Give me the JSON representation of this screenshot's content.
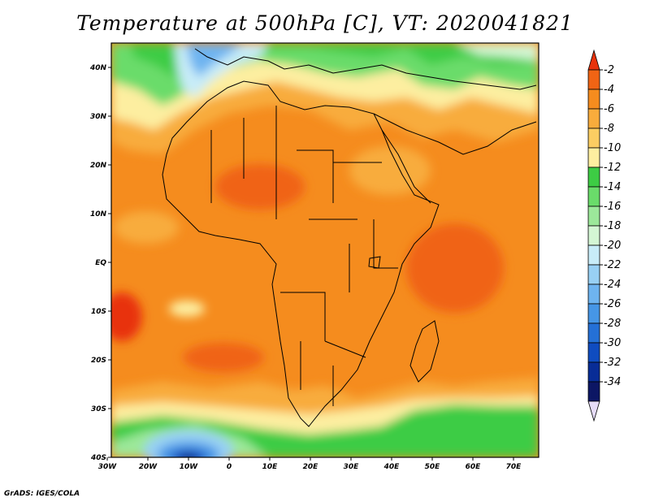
{
  "title": "Temperature at 500hPa [C], VT: 2020041821",
  "credit": "GrADS: IGES/COLA",
  "axes": {
    "lat_labels": [
      "40N",
      "30N",
      "20N",
      "10N",
      "EQ",
      "10S",
      "20S",
      "30S",
      "40S"
    ],
    "lon_labels": [
      "30W",
      "20W",
      "10W",
      "0",
      "10E",
      "20E",
      "30E",
      "40E",
      "50E",
      "60E",
      "70E"
    ]
  },
  "colorbar": {
    "labels": [
      "-2",
      "-4",
      "-6",
      "-8",
      "-10",
      "-12",
      "-14",
      "-16",
      "-18",
      "-20",
      "-22",
      "-24",
      "-26",
      "-28",
      "-30",
      "-32",
      "-34"
    ],
    "colors": [
      "#e8320c",
      "#f06414",
      "#f58c1e",
      "#f8ac3c",
      "#fbcd62",
      "#fdeea0",
      "#3dcc44",
      "#6adc6a",
      "#9ce89a",
      "#d4f6d4",
      "#c8ecf8",
      "#98d0f4",
      "#6eb4f0",
      "#4696e6",
      "#2470d6",
      "#0f4cc0",
      "#082c96",
      "#0c1664",
      "#e6dcf8"
    ]
  }
}
